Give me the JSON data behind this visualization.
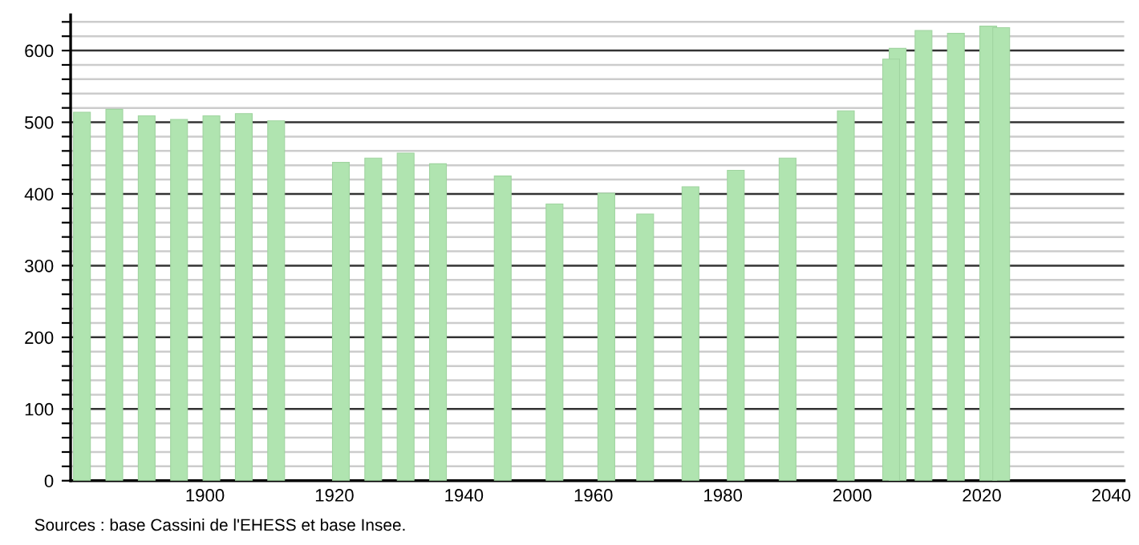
{
  "chart_data": {
    "type": "bar",
    "x": [
      1881,
      1886,
      1891,
      1896,
      1901,
      1906,
      1911,
      1921,
      1926,
      1931,
      1936,
      1946,
      1954,
      1962,
      1968,
      1975,
      1982,
      1990,
      1999,
      2006,
      2007,
      2011,
      2016,
      2021,
      2023
    ],
    "values": [
      514,
      518,
      509,
      504,
      509,
      512,
      502,
      444,
      450,
      457,
      442,
      425,
      386,
      401,
      372,
      410,
      433,
      450,
      516,
      588,
      603,
      628,
      624,
      634,
      632
    ],
    "color": "#b0e4b0",
    "xlim": [
      1879.25,
      2042
    ],
    "xticks": [
      1900,
      1920,
      1940,
      1960,
      1980,
      2000,
      2020,
      2040
    ],
    "ylim": [
      0,
      650
    ],
    "yticks": [
      0,
      {
        "value": 20,
        "label": null
      },
      {
        "value": 40,
        "label": null
      },
      {
        "value": 60,
        "label": null
      },
      {
        "value": 80,
        "label": null
      },
      100,
      {
        "value": 120,
        "label": null
      },
      {
        "value": 140,
        "label": null
      },
      {
        "value": 160,
        "label": null
      },
      {
        "value": 180,
        "label": null
      },
      200,
      {
        "value": 220,
        "label": null
      },
      {
        "value": 240,
        "label": null
      },
      {
        "value": 260,
        "label": null
      },
      {
        "value": 280,
        "label": null
      },
      300,
      {
        "value": 320,
        "label": null
      },
      {
        "value": 340,
        "label": null
      },
      {
        "value": 360,
        "label": null
      },
      {
        "value": 380,
        "label": null
      },
      400,
      {
        "value": 420,
        "label": null
      },
      {
        "value": 440,
        "label": null
      },
      {
        "value": 460,
        "label": null
      },
      {
        "value": 480,
        "label": null
      },
      500,
      {
        "value": 520,
        "label": null
      },
      {
        "value": 540,
        "label": null
      },
      {
        "value": 560,
        "label": null
      },
      {
        "value": 580,
        "label": null
      },
      600,
      {
        "value": 620,
        "label": null
      },
      {
        "value": 640,
        "label": null
      }
    ],
    "grid": "y",
    "annotations": [
      "Sources : base Cassini de l'EHESS et base Insee."
    ]
  }
}
